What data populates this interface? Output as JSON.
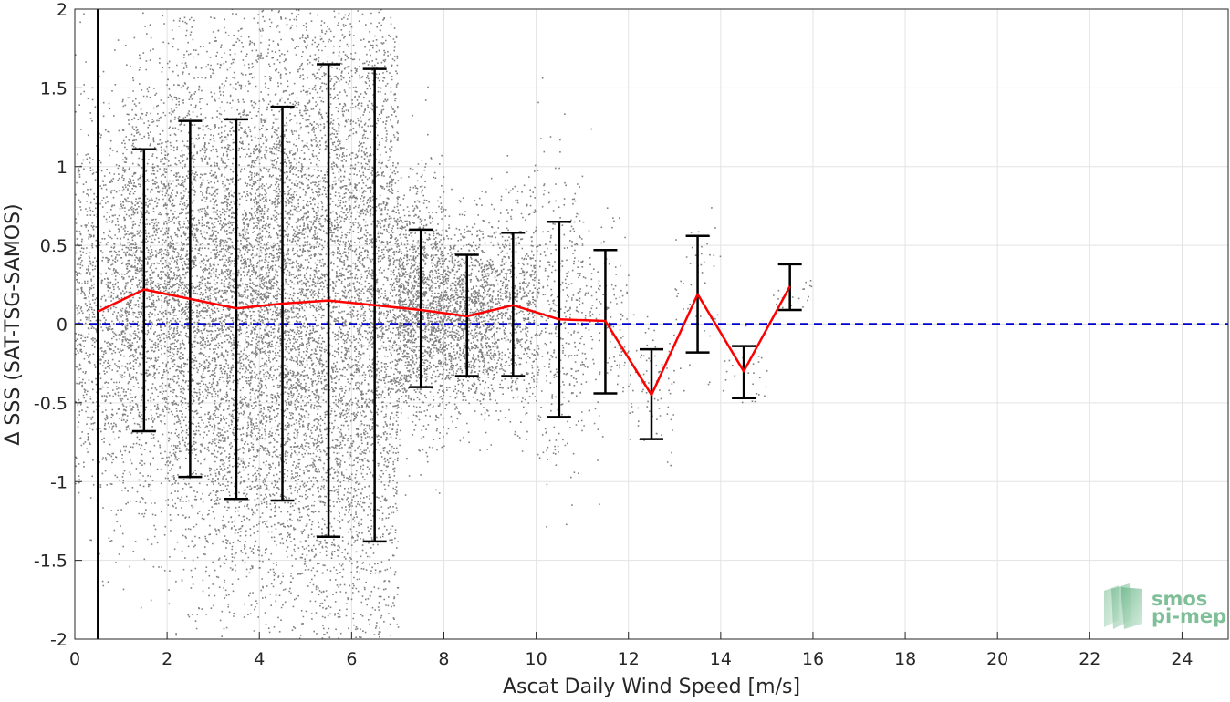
{
  "chart_data": {
    "type": "scatter",
    "title": "",
    "xlabel": "Ascat Daily Wind Speed [m/s]",
    "ylabel": "Δ SSS (SAT-TSG-SAMOS)",
    "xlim": [
      0,
      25
    ],
    "ylim": [
      -2,
      2
    ],
    "xticks": [
      "0",
      "2",
      "4",
      "6",
      "8",
      "10",
      "12",
      "14",
      "16",
      "18",
      "20",
      "22",
      "24"
    ],
    "yticks": [
      "-2",
      "-1.5",
      "-1",
      "-0.5",
      "0",
      "0.5",
      "1",
      "1.5",
      "2"
    ],
    "grid": true,
    "vertical_line_x": 0.5,
    "zero_line_y": 0,
    "bins": {
      "x": [
        0.5,
        1.5,
        2.5,
        3.5,
        4.5,
        5.5,
        6.5,
        7.5,
        8.5,
        9.5,
        10.5,
        11.5,
        12.5,
        13.5,
        14.5,
        15.5
      ],
      "mean": [
        0.08,
        0.22,
        0.16,
        0.1,
        0.13,
        0.15,
        0.12,
        0.09,
        0.05,
        0.12,
        0.03,
        0.02,
        -0.45,
        0.19,
        -0.3,
        0.24
      ],
      "upper": [
        null,
        1.11,
        1.29,
        1.3,
        1.38,
        1.65,
        1.62,
        0.6,
        0.44,
        0.58,
        0.65,
        0.47,
        -0.16,
        0.56,
        -0.14,
        0.38
      ],
      "lower": [
        null,
        -0.68,
        -0.97,
        -1.11,
        -1.12,
        -1.35,
        -1.38,
        -0.4,
        -0.33,
        -0.33,
        -0.59,
        -0.44,
        -0.73,
        -0.18,
        -0.47,
        0.09
      ]
    },
    "colors": {
      "scatter": "#808080",
      "mean_line": "#ff0000",
      "errorbar": "#000000",
      "zero_line": "#0000cc",
      "grid": "#e3e3e3",
      "logo": "#7fbf98"
    }
  },
  "logo": {
    "line1": "smos",
    "line2": "pi-mep"
  }
}
